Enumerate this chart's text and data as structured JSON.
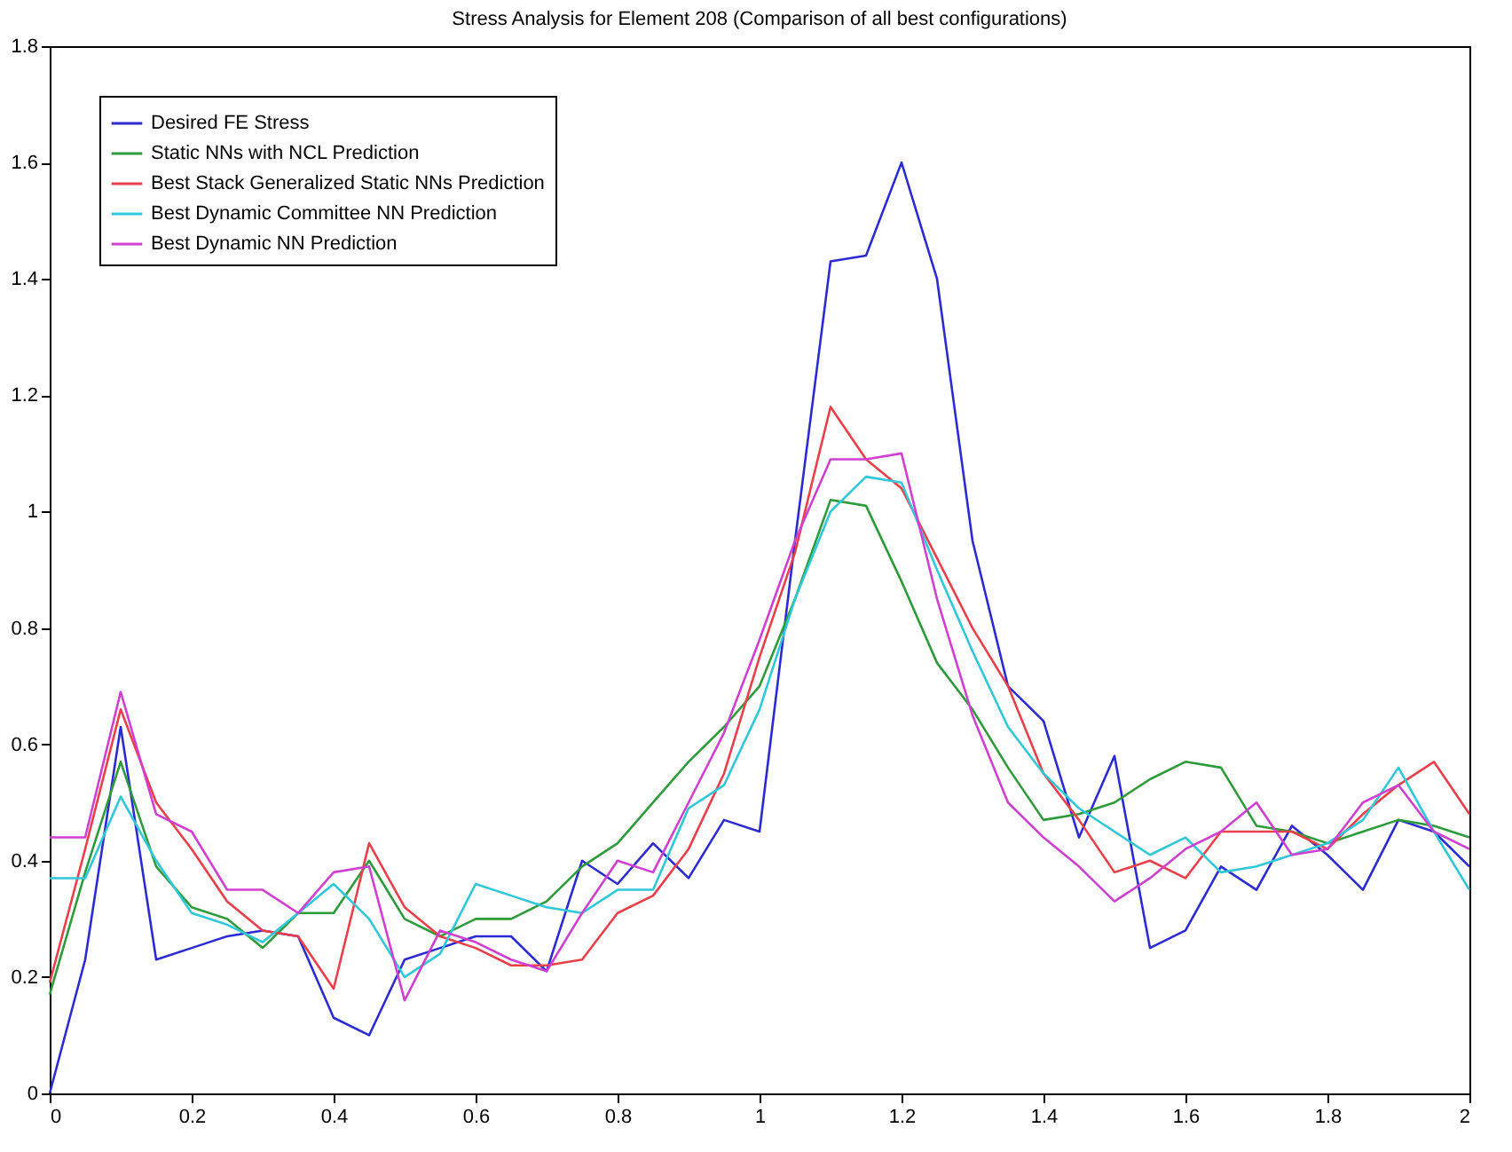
{
  "chart_data": {
    "type": "line",
    "title": "Stress Analysis for Element 208 (Comparison of all best configurations)",
    "x": [
      0,
      0.05,
      0.1,
      0.15,
      0.2,
      0.25,
      0.3,
      0.35,
      0.4,
      0.45,
      0.5,
      0.55,
      0.6,
      0.65,
      0.7,
      0.75,
      0.8,
      0.85,
      0.9,
      0.95,
      1.0,
      1.05,
      1.1,
      1.15,
      1.2,
      1.25,
      1.3,
      1.35,
      1.4,
      1.45,
      1.5,
      1.55,
      1.6,
      1.65,
      1.7,
      1.75,
      1.8,
      1.85,
      1.9,
      1.95,
      2.0
    ],
    "series": [
      {
        "name": "Desired FE Stress",
        "color": "#2b2bd0",
        "values": [
          0.0,
          0.23,
          0.63,
          0.23,
          0.25,
          0.27,
          0.28,
          0.27,
          0.13,
          0.1,
          0.23,
          0.25,
          0.27,
          0.27,
          0.21,
          0.4,
          0.36,
          0.43,
          0.37,
          0.47,
          0.45,
          0.95,
          1.43,
          1.44,
          1.6,
          1.4,
          0.95,
          0.7,
          0.64,
          0.44,
          0.58,
          0.25,
          0.28,
          0.39,
          0.35,
          0.46,
          0.41,
          0.35,
          0.47,
          0.45,
          0.39
        ]
      },
      {
        "name": "Static NNs with NCL Prediction",
        "color": "#2e9b3a",
        "values": [
          0.17,
          0.38,
          0.57,
          0.39,
          0.32,
          0.3,
          0.25,
          0.31,
          0.31,
          0.4,
          0.3,
          0.27,
          0.3,
          0.3,
          0.33,
          0.39,
          0.43,
          0.5,
          0.57,
          0.63,
          0.7,
          0.85,
          1.02,
          1.01,
          0.88,
          0.74,
          0.66,
          0.56,
          0.47,
          0.48,
          0.5,
          0.54,
          0.57,
          0.56,
          0.46,
          0.45,
          0.43,
          0.45,
          0.47,
          0.46,
          0.44
        ]
      },
      {
        "name": "Best Stack Generalized Static NNs Prediction",
        "color": "#e8404a",
        "values": [
          0.19,
          0.42,
          0.66,
          0.5,
          0.42,
          0.33,
          0.28,
          0.27,
          0.18,
          0.43,
          0.32,
          0.27,
          0.25,
          0.22,
          0.22,
          0.23,
          0.31,
          0.34,
          0.42,
          0.55,
          0.75,
          0.93,
          1.18,
          1.09,
          1.04,
          0.92,
          0.8,
          0.7,
          0.55,
          0.47,
          0.38,
          0.4,
          0.37,
          0.45,
          0.45,
          0.45,
          0.42,
          0.48,
          0.53,
          0.57,
          0.48
        ]
      },
      {
        "name": "Best Dynamic Committee NN Prediction",
        "color": "#30c8d8",
        "values": [
          0.37,
          0.37,
          0.51,
          0.4,
          0.31,
          0.29,
          0.26,
          0.31,
          0.36,
          0.3,
          0.2,
          0.24,
          0.36,
          0.34,
          0.32,
          0.31,
          0.35,
          0.35,
          0.49,
          0.53,
          0.66,
          0.85,
          1.0,
          1.06,
          1.05,
          0.9,
          0.76,
          0.63,
          0.55,
          0.49,
          0.45,
          0.41,
          0.44,
          0.38,
          0.39,
          0.41,
          0.43,
          0.47,
          0.56,
          0.45,
          0.35
        ]
      },
      {
        "name": "Best Dynamic NN Prediction",
        "color": "#d040d0",
        "values": [
          0.44,
          0.44,
          0.69,
          0.48,
          0.45,
          0.35,
          0.35,
          0.31,
          0.38,
          0.39,
          0.16,
          0.28,
          0.26,
          0.23,
          0.21,
          0.31,
          0.4,
          0.38,
          0.5,
          0.62,
          0.78,
          0.95,
          1.09,
          1.09,
          1.1,
          0.85,
          0.65,
          0.5,
          0.44,
          0.39,
          0.33,
          0.37,
          0.42,
          0.45,
          0.5,
          0.41,
          0.42,
          0.5,
          0.53,
          0.45,
          0.42
        ]
      }
    ],
    "xlim": [
      0,
      2
    ],
    "xticks": [
      0,
      0.2,
      0.4,
      0.6,
      0.8,
      1,
      1.2,
      1.4,
      1.6,
      1.8,
      2
    ],
    "ylim": [
      0,
      1.8
    ],
    "yticks": [
      0,
      0.2,
      0.4,
      0.6,
      0.8,
      1,
      1.2,
      1.4,
      1.6,
      1.8
    ],
    "grid": false,
    "legend": "top left",
    "marker": "none",
    "line_style": "solid"
  }
}
